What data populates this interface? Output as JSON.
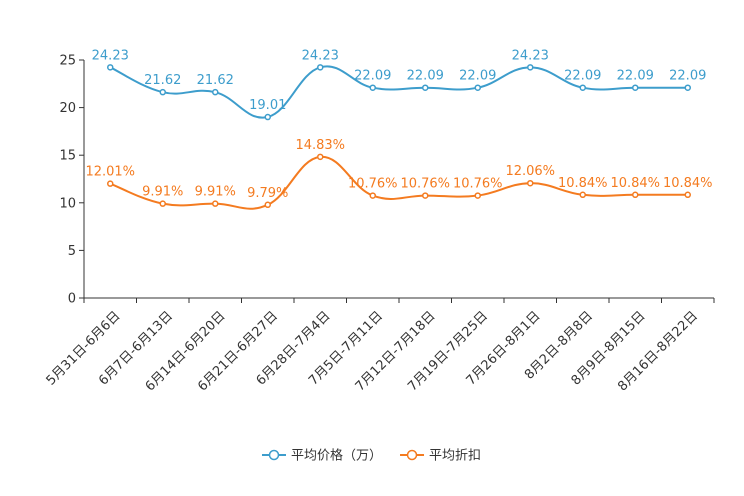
{
  "chart_data": {
    "type": "line",
    "title": "",
    "xlabel": "",
    "ylabel": "",
    "ylim": [
      0,
      25
    ],
    "yticks": [
      0,
      5,
      10,
      15,
      20,
      25
    ],
    "grid": false,
    "legend_position": "bottom-center",
    "categories": [
      "5月31日-6月6日",
      "6月7日-6月13日",
      "6月14日-6月20日",
      "6月21日-6月27日",
      "6月28日-7月4日",
      "7月5日-7月11日",
      "7月12日-7月18日",
      "7月19日-7月25日",
      "7月26日-8月1日",
      "8月2日-8月8日",
      "8月9日-8月15日",
      "8月16日-8月22日"
    ],
    "series": [
      {
        "name": "平均价格（万）",
        "color": "#3d9dcc",
        "values": [
          24.23,
          21.62,
          21.62,
          19.01,
          24.23,
          22.09,
          22.09,
          22.09,
          24.23,
          22.09,
          22.09,
          22.09
        ],
        "labels": [
          "24.23",
          "21.62",
          "21.62",
          "19.01",
          "24.23",
          "22.09",
          "22.09",
          "22.09",
          "24.23",
          "22.09",
          "22.09",
          "22.09"
        ]
      },
      {
        "name": "平均折扣",
        "color": "#f47b20",
        "values": [
          12.01,
          9.91,
          9.91,
          9.79,
          14.83,
          10.76,
          10.76,
          10.76,
          12.06,
          10.84,
          10.84,
          10.84
        ],
        "labels": [
          "12.01%",
          "9.91%",
          "9.91%",
          "9.79%",
          "14.83%",
          "10.76%",
          "10.76%",
          "10.76%",
          "12.06%",
          "10.84%",
          "10.84%",
          "10.84%"
        ]
      }
    ]
  }
}
